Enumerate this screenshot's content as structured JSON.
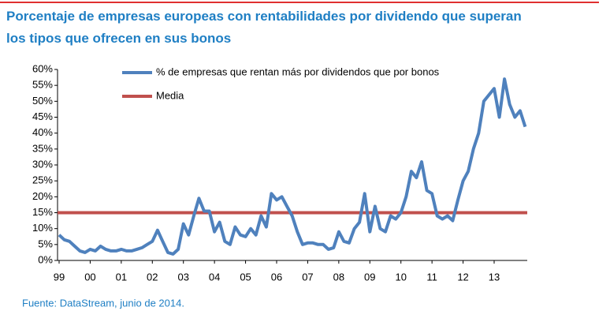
{
  "chart_data": {
    "type": "line",
    "title": "Porcentaje de empresas europeas con rentabilidades por dividendo que superan los tipos que ofrecen en sus bonos",
    "source": "Fuente: DataStream, junio de 2014.",
    "categories": [
      "99",
      null,
      null,
      null,
      null,
      null,
      "00",
      null,
      null,
      null,
      null,
      null,
      "01",
      null,
      null,
      null,
      null,
      null,
      "02",
      null,
      null,
      null,
      null,
      null,
      "03",
      null,
      null,
      null,
      null,
      null,
      "04",
      null,
      null,
      null,
      null,
      null,
      "05",
      null,
      null,
      null,
      null,
      null,
      "06",
      null,
      null,
      null,
      null,
      null,
      "07",
      null,
      null,
      null,
      null,
      null,
      "08",
      null,
      null,
      null,
      null,
      null,
      "09",
      null,
      null,
      null,
      null,
      null,
      "10",
      null,
      null,
      null,
      null,
      null,
      "11",
      null,
      null,
      null,
      null,
      null,
      "12",
      null,
      null,
      null,
      null,
      null,
      "13",
      null,
      null,
      null,
      null,
      null,
      null
    ],
    "series": [
      {
        "name": "% de empresas que rentan más por dividendos que por bonos",
        "color": "#4f81bd",
        "values": [
          8,
          6.5,
          6,
          4.5,
          3,
          2.5,
          3.5,
          3,
          4.5,
          3.5,
          3,
          3,
          3.5,
          3,
          3,
          3.5,
          4,
          5,
          6,
          9.5,
          6,
          2.5,
          2,
          3.5,
          11.5,
          8,
          14,
          19.5,
          15.5,
          15.5,
          9,
          12,
          6,
          5,
          10.5,
          8,
          7.5,
          10,
          8,
          14,
          10.5,
          21,
          19,
          20,
          17,
          14,
          9,
          5,
          5.5,
          5.5,
          5,
          5,
          3.5,
          4,
          9,
          6,
          5.5,
          10,
          12,
          21,
          9,
          17,
          10,
          9,
          14,
          13,
          15,
          20,
          28,
          26,
          31,
          22,
          21,
          14,
          13,
          14,
          12.5,
          19,
          25,
          28,
          35,
          40,
          50,
          52,
          54,
          45,
          57,
          49,
          45,
          47,
          42
        ]
      }
    ],
    "reference_lines": [
      {
        "name": "Media",
        "value": 15,
        "color": "#c0504d"
      }
    ],
    "ylim": [
      0,
      60
    ],
    "yticks": [
      {
        "value": 0,
        "label": "0%"
      },
      {
        "value": 5,
        "label": "5%"
      },
      {
        "value": 10,
        "label": "10%"
      },
      {
        "value": 15,
        "label": "15%"
      },
      {
        "value": 20,
        "label": "20%"
      },
      {
        "value": 25,
        "label": "25%"
      },
      {
        "value": 30,
        "label": "30%"
      },
      {
        "value": 35,
        "label": "35%"
      },
      {
        "value": 40,
        "label": "40%"
      },
      {
        "value": 45,
        "label": "45%"
      },
      {
        "value": 50,
        "label": "50%"
      },
      {
        "value": 55,
        "label": "55%"
      },
      {
        "value": 60,
        "label": "60%"
      }
    ]
  }
}
